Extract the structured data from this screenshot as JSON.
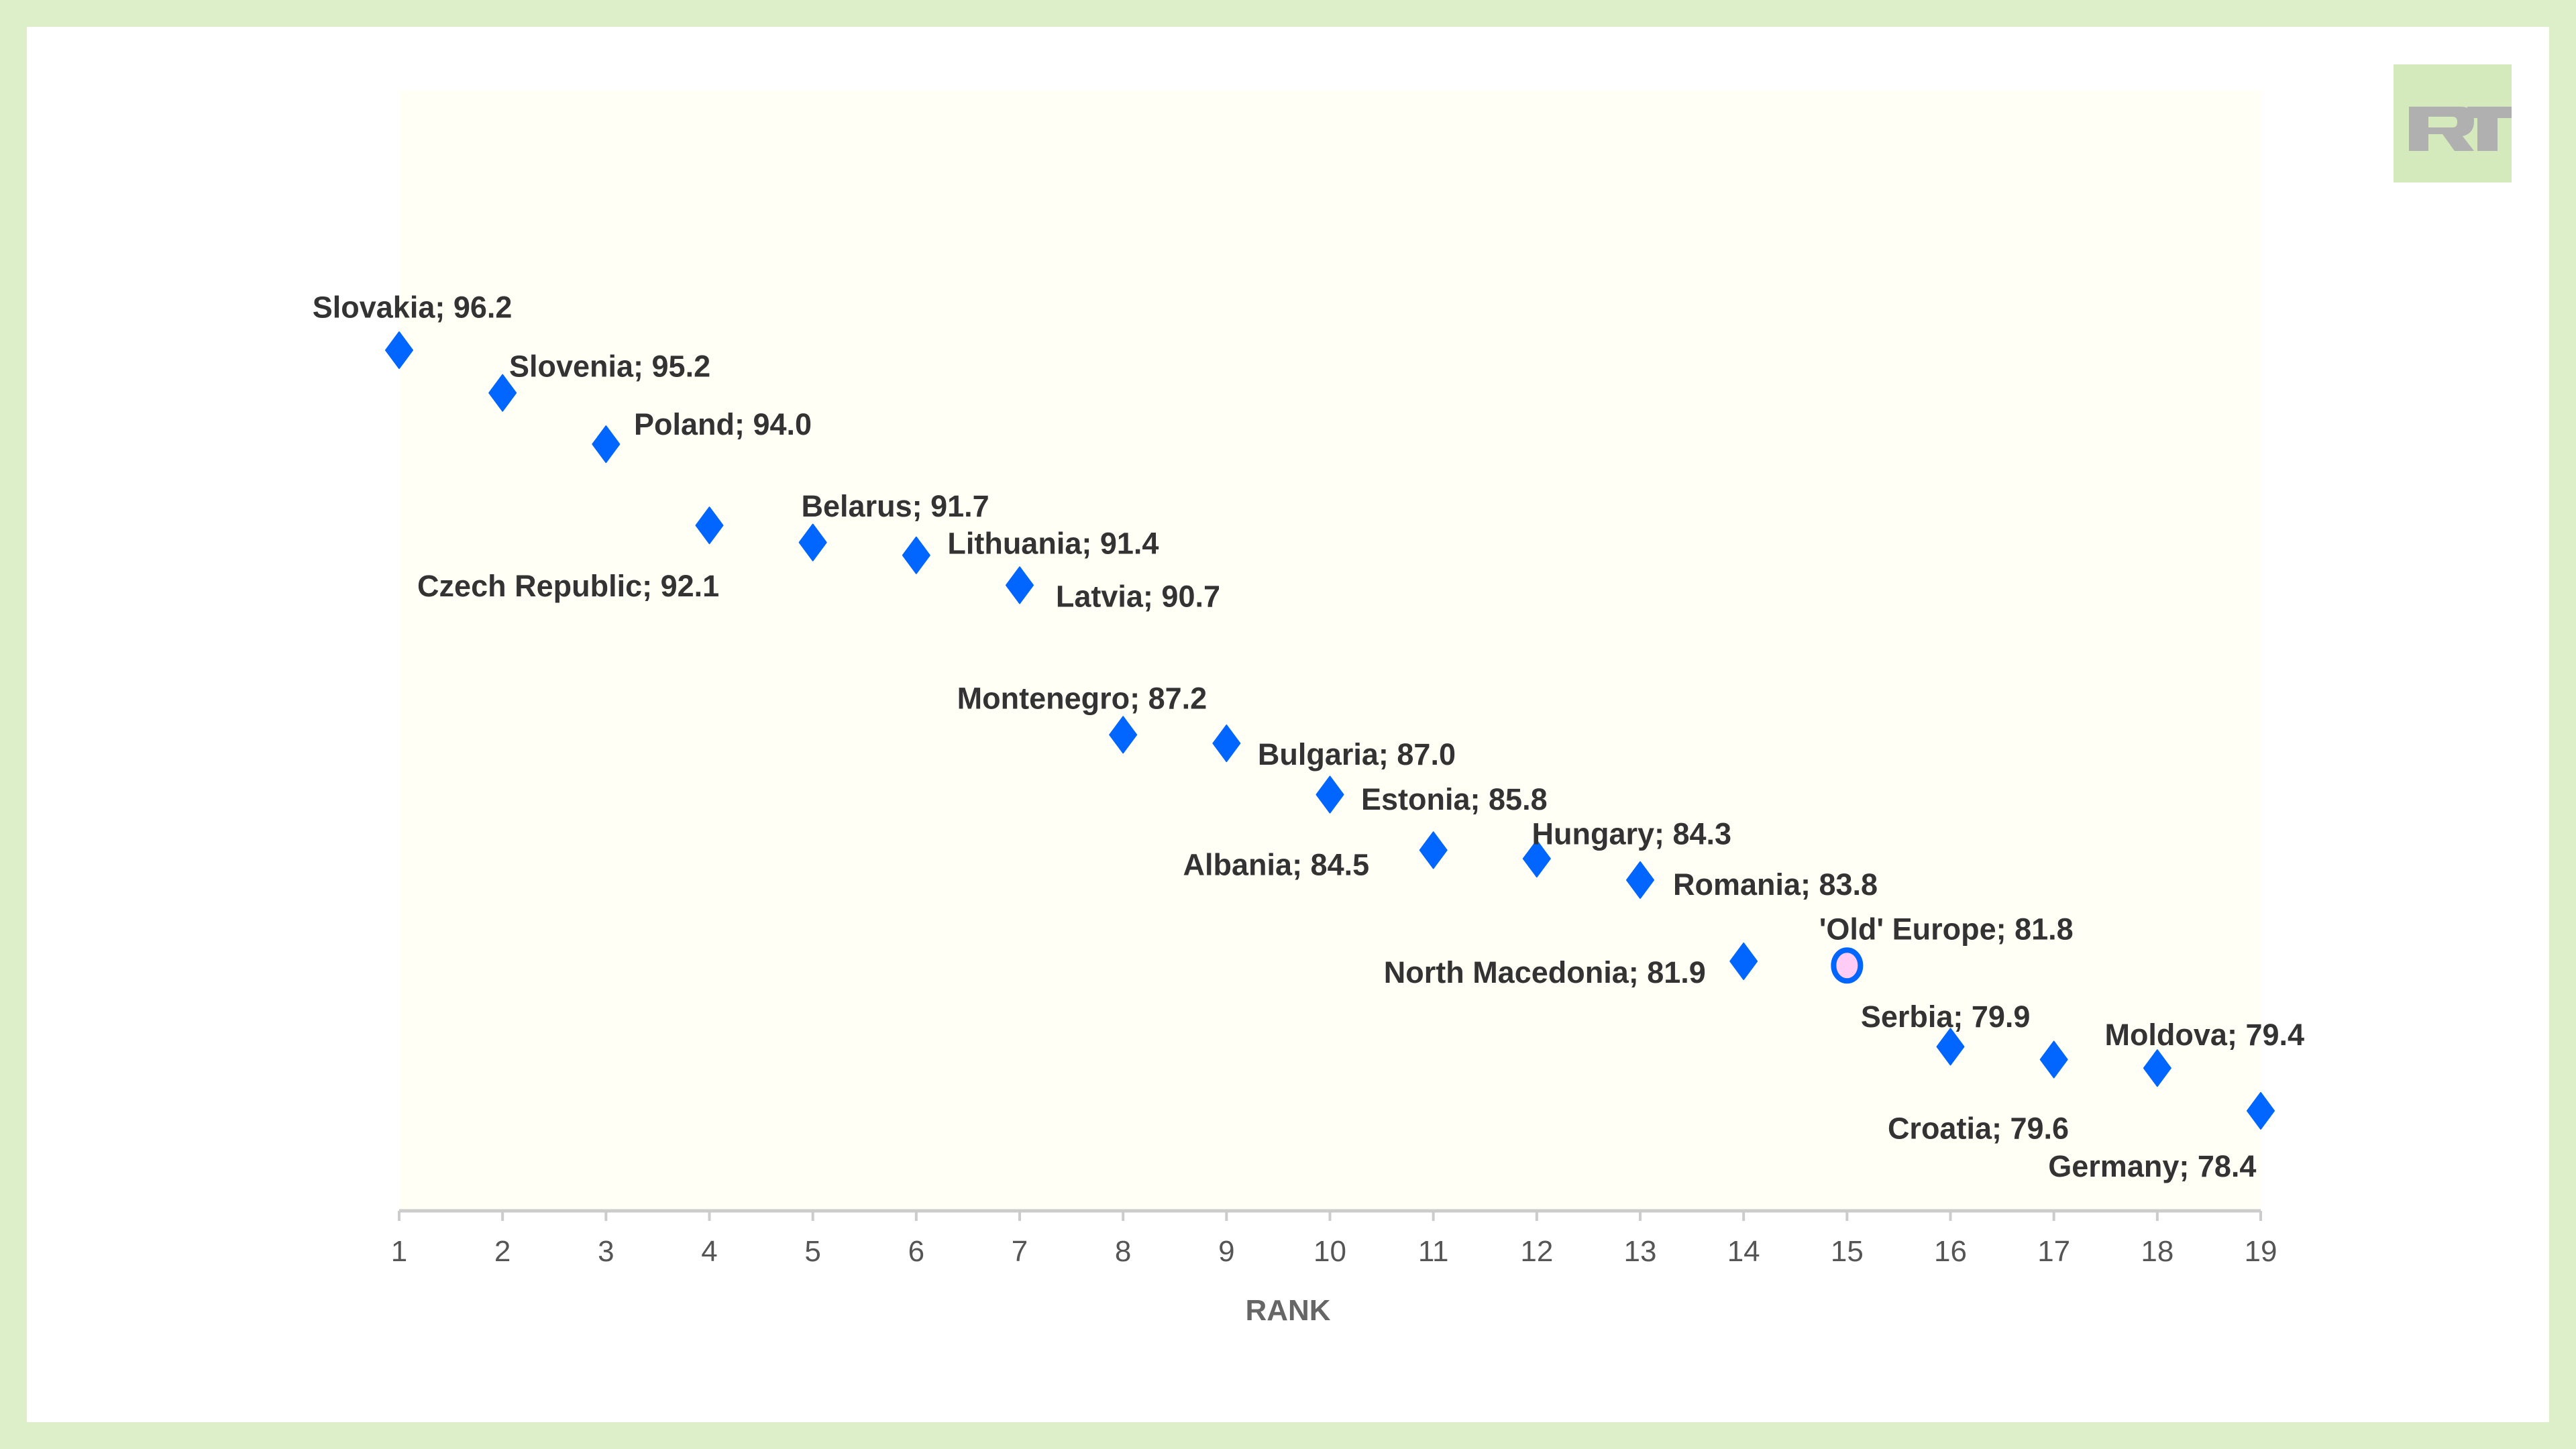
{
  "logo": {
    "text": "RT"
  },
  "chart_data": {
    "type": "scatter",
    "title": "",
    "xlabel": "RANK",
    "ylabel": "",
    "xlim": [
      1,
      19
    ],
    "x_ticks": [
      1,
      2,
      3,
      4,
      5,
      6,
      7,
      8,
      9,
      10,
      11,
      12,
      13,
      14,
      15,
      16,
      17,
      18,
      19
    ],
    "grid": false,
    "points": [
      {
        "rank": 1,
        "name": "Slovakia",
        "value": 96.2,
        "label": "Slovakia; 96.2"
      },
      {
        "rank": 2,
        "name": "Slovenia",
        "value": 95.2,
        "label": "Slovenia; 95.2"
      },
      {
        "rank": 3,
        "name": "Poland",
        "value": 94.0,
        "label": "Poland; 94.0"
      },
      {
        "rank": 4,
        "name": "Czech Republic",
        "value": 92.1,
        "label": "Czech Republic; 92.1"
      },
      {
        "rank": 5,
        "name": "Belarus",
        "value": 91.7,
        "label": "Belarus; 91.7"
      },
      {
        "rank": 6,
        "name": "Lithuania",
        "value": 91.4,
        "label": "Lithuania; 91.4"
      },
      {
        "rank": 7,
        "name": "Latvia",
        "value": 90.7,
        "label": "Latvia; 90.7"
      },
      {
        "rank": 8,
        "name": "Montenegro",
        "value": 87.2,
        "label": "Montenegro; 87.2"
      },
      {
        "rank": 9,
        "name": "Bulgaria",
        "value": 87.0,
        "label": "Bulgaria; 87.0"
      },
      {
        "rank": 10,
        "name": "Estonia",
        "value": 85.8,
        "label": "Estonia; 85.8"
      },
      {
        "rank": 11,
        "name": "Albania",
        "value": 84.5,
        "label": "Albania; 84.5"
      },
      {
        "rank": 12,
        "name": "Hungary",
        "value": 84.3,
        "label": "Hungary; 84.3"
      },
      {
        "rank": 13,
        "name": "Romania",
        "value": 83.8,
        "label": "Romania; 83.8"
      },
      {
        "rank": 14,
        "name": "North Macedonia",
        "value": 81.9,
        "label": "North Macedonia; 81.9"
      },
      {
        "rank": 15,
        "name": "'Old' Europe",
        "value": 81.8,
        "label": "'Old' Europe; 81.8",
        "highlight": true
      },
      {
        "rank": 16,
        "name": "Serbia",
        "value": 79.9,
        "label": "Serbia; 79.9"
      },
      {
        "rank": 17,
        "name": "Croatia",
        "value": 79.6,
        "label": "Croatia; 79.6"
      },
      {
        "rank": 18,
        "name": "Moldova",
        "value": 79.4,
        "label": "Moldova; 79.4"
      },
      {
        "rank": 19,
        "name": "Germany",
        "value": 78.4,
        "label": "Germany; 78.4"
      }
    ],
    "colors": {
      "marker": "#0066ff",
      "highlight_fill": "#ffccf5",
      "plot_bg": "#fffff5",
      "label": "#333333",
      "axis": "#555555"
    }
  }
}
